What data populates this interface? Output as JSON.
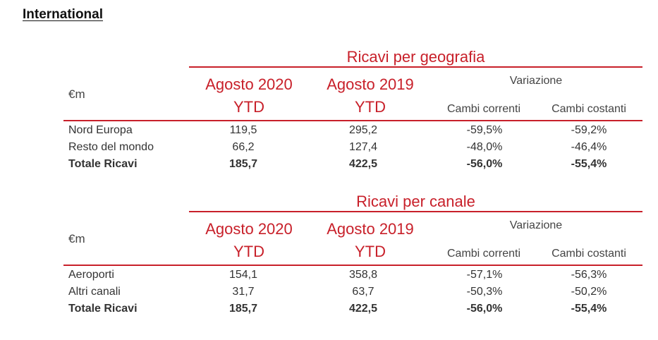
{
  "heading": "International",
  "common": {
    "unit": "€m",
    "col1_line1": "Agosto 2020",
    "col1_line2": "YTD",
    "col2_line1": "Agosto 2019",
    "col2_line2": "YTD",
    "variation": "Variazione",
    "current_fx": "Cambi correnti",
    "constant_fx": "Cambi costanti"
  },
  "geografia": {
    "title": "Ricavi per geografia",
    "rows": [
      {
        "label": "Nord Europa",
        "v2020": "119,5",
        "v2019": "295,2",
        "correnti": "-59,5%",
        "costanti": "-59,2%"
      },
      {
        "label": "Resto del mondo",
        "v2020": "66,2",
        "v2019": "127,4",
        "correnti": "-48,0%",
        "costanti": "-46,4%"
      },
      {
        "label": "Totale Ricavi",
        "v2020": "185,7",
        "v2019": "422,5",
        "correnti": "-56,0%",
        "costanti": "-55,4%"
      }
    ]
  },
  "canale": {
    "title": "Ricavi per canale",
    "rows": [
      {
        "label": "Aeroporti",
        "v2020": "154,1",
        "v2019": "358,8",
        "correnti": "-57,1%",
        "costanti": "-56,3%"
      },
      {
        "label": "Altri canali",
        "v2020": "31,7",
        "v2019": "63,7",
        "correnti": "-50,3%",
        "costanti": "-50,2%"
      },
      {
        "label": "Totale Ricavi",
        "v2020": "185,7",
        "v2019": "422,5",
        "correnti": "-56,0%",
        "costanti": "-55,4%"
      }
    ]
  }
}
